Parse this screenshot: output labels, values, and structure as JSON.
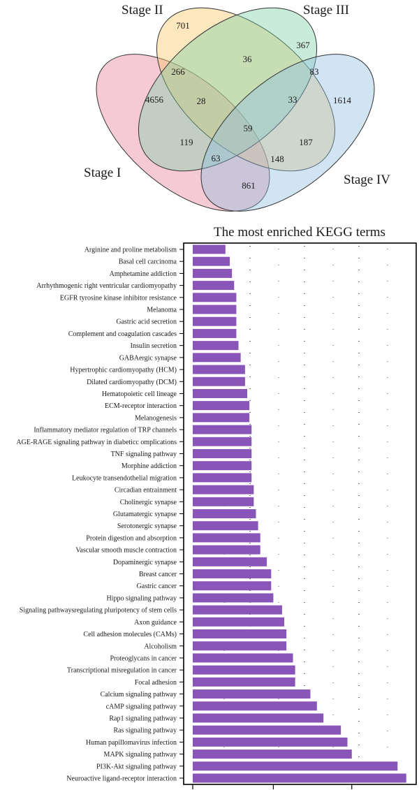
{
  "venn": {
    "sets": [
      "Stage I",
      "Stage II",
      "Stage III",
      "Stage IV"
    ],
    "colors": {
      "stage_i": "#e7809c",
      "stage_ii": "#f8c567",
      "stage_iii": "#7fd1a7",
      "stage_iv": "#8fbfe0"
    },
    "regions": [
      {
        "sets": [
          "Stage I"
        ],
        "count": "4656"
      },
      {
        "sets": [
          "Stage II"
        ],
        "count": "701"
      },
      {
        "sets": [
          "Stage III"
        ],
        "count": "367"
      },
      {
        "sets": [
          "Stage IV"
        ],
        "count": "1614"
      },
      {
        "sets": [
          "Stage I",
          "Stage II"
        ],
        "count": "266"
      },
      {
        "sets": [
          "Stage II",
          "Stage III"
        ],
        "count": "36"
      },
      {
        "sets": [
          "Stage III",
          "Stage IV"
        ],
        "count": "83"
      },
      {
        "sets": [
          "Stage I",
          "Stage IV"
        ],
        "count": "861"
      },
      {
        "sets": [
          "Stage I",
          "Stage III"
        ],
        "count": "119"
      },
      {
        "sets": [
          "Stage II",
          "Stage IV"
        ],
        "count": "187"
      },
      {
        "sets": [
          "Stage I",
          "Stage II",
          "Stage III"
        ],
        "count": "28"
      },
      {
        "sets": [
          "Stage II",
          "Stage III",
          "Stage IV"
        ],
        "count": "33"
      },
      {
        "sets": [
          "Stage I",
          "Stage III",
          "Stage IV"
        ],
        "count": "63"
      },
      {
        "sets": [
          "Stage I",
          "Stage II",
          "Stage IV"
        ],
        "count": "148"
      },
      {
        "sets": [
          "Stage I",
          "Stage II",
          "Stage III",
          "Stage IV"
        ],
        "count": "59"
      }
    ]
  },
  "chart_data": {
    "type": "bar",
    "orientation": "horizontal",
    "title": "The most enriched KEGG terms",
    "xlabel": "",
    "ylabel": "",
    "x_tick_labels": [],
    "xlim": [
      0,
      100
    ],
    "bar_color": "#8a55b8",
    "categories": [
      "Arginine and proline metabolism",
      "Basal cell carcinoma",
      "Amphetamine addiction",
      "Arrhythmogenic right ventricular cardiomyopathy",
      "EGFR tyrosine kinase inhibitor resistance",
      "Melanoma",
      "Gastric acid secretion",
      "Complement and coagulation cascades",
      "Insulin secretion",
      "GABAergic synapse",
      "Hypertrophic cardiomyopathy (HCM)",
      "Dilated cardiomyopathy (DCM)",
      "Hematopoietic cell lineage",
      "ECM-receptor interaction",
      "Melanogenesis",
      "Inflammatory mediator regulation of TRP channels",
      "AGE-RAGE signaling pathway in diabeticc omplications",
      "TNF signaling pathway",
      "Morphine addiction",
      "Leukocyte transendothelial migration",
      "Circadian entrainment",
      "Cholinergic synapse",
      "Glutamatergic synapse",
      "Serotonergic synapse",
      "Protein digestion and absorption",
      "Vascular smooth muscle contraction",
      "Dopaminergic synapse",
      "Breast cancer",
      "Gastric cancer",
      "Hippo signaling pathway",
      "Signaling pathwaysregulating pluripotency of stem cells",
      "Axon guidance",
      "Cell adhesion molecules (CAMs)",
      "Alcoholism",
      "Proteoglycans in cancer",
      "Transcriptional misregulation in cancer",
      "Focal adhesion",
      "Calcium signaling pathway",
      "cAMP signaling pathway",
      "Rap1 signaling pathway",
      "Ras signaling pathway",
      "Human papillomavirus infection",
      "MAPK signaling pathway",
      "PI3K-Akt signaling pathway",
      "Neuroactive ligand-receptor interaction"
    ],
    "values": [
      15,
      17,
      18,
      19,
      20,
      20,
      20,
      20,
      21,
      22,
      24,
      24,
      25,
      26,
      26,
      27,
      27,
      27,
      27,
      27,
      28,
      28,
      29,
      30,
      31,
      31,
      34,
      36,
      36,
      37,
      41,
      42,
      43,
      43,
      46,
      47,
      47,
      54,
      57,
      60,
      68,
      71,
      73,
      94,
      98
    ],
    "grid": "dotted vertical"
  }
}
